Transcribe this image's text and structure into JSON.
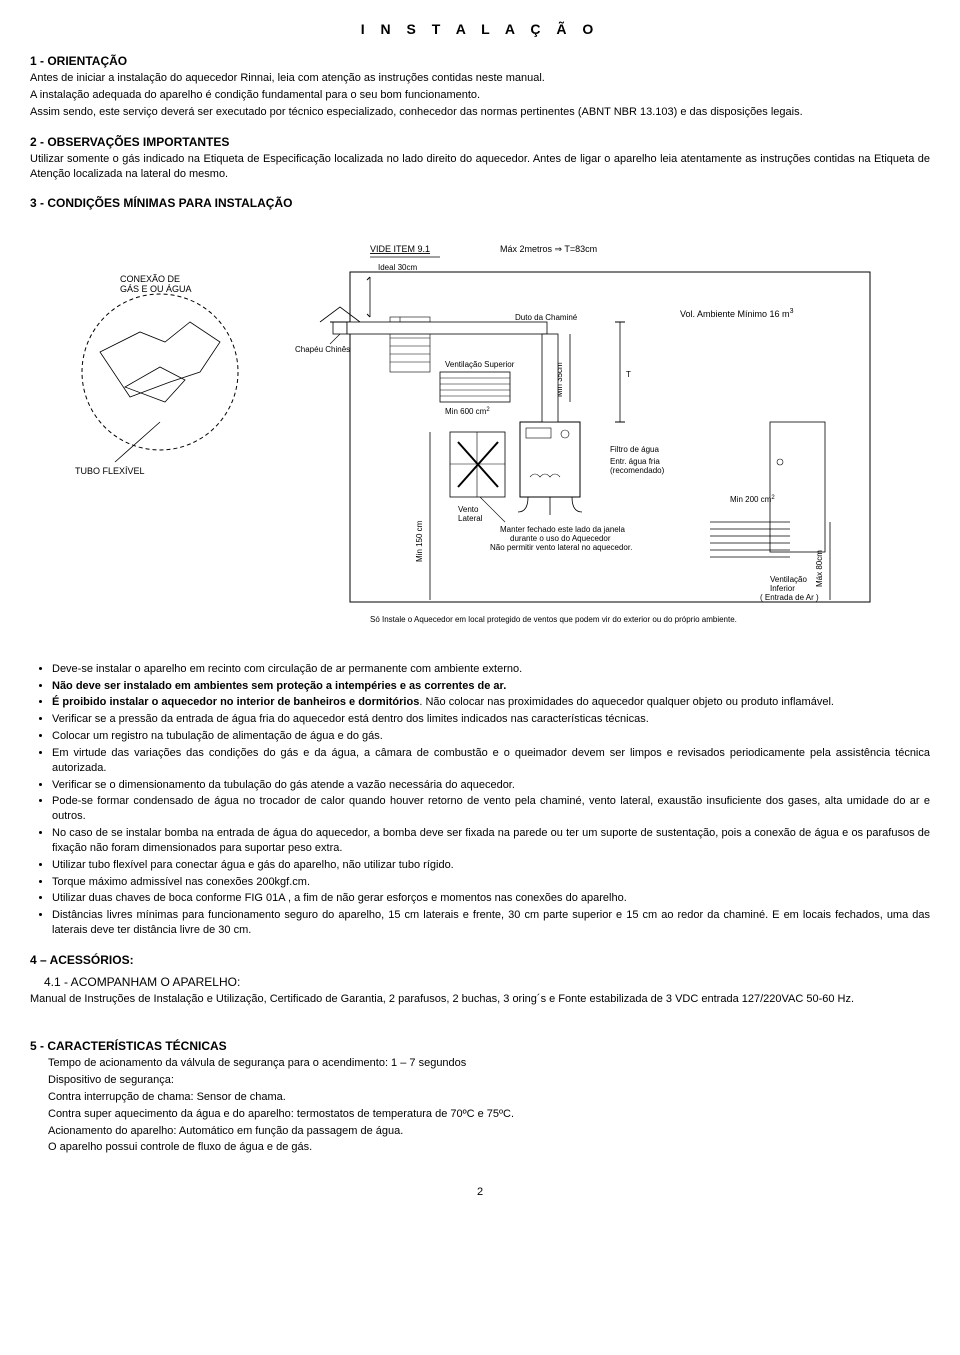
{
  "page_title": "I N S T A L A Ç Ã O",
  "sec1": {
    "heading": "1 - ORIENTAÇÃO",
    "p1": "Antes de iniciar a instalação do aquecedor Rinnai, leia com atenção as instruções contidas neste manual.",
    "p2": "A instalação adequada do aparelho é condição fundamental para o seu bom funcionamento.",
    "p3": "Assim sendo, este serviço deverá ser executado por técnico especializado, conhecedor das normas pertinentes (ABNT NBR 13.103) e das disposições legais."
  },
  "sec2": {
    "heading": "2 - OBSERVAÇÕES IMPORTANTES",
    "p1": "Utilizar somente o gás indicado na Etiqueta de Especificação localizada no lado direito do aquecedor. Antes de ligar o aparelho leia atentamente as instruções contidas na Etiqueta de Atenção localizada na lateral do mesmo."
  },
  "sec3": {
    "heading": "3 - CONDIÇÕES MÍNIMAS PARA INSTALAÇÃO"
  },
  "diagram": {
    "labels": {
      "vide_item": "VIDE ITEM 9.1",
      "max2m": "Máx 2metros ⇒ T=83cm",
      "ideal30": "Ideal 30cm",
      "conexao": "CONEXÃO DE GÁS E OU ÁGUA",
      "chapeu": "Chapéu Chinês",
      "duto": "Duto da Chaminé",
      "vol_amb": "Vol. Ambiente  Mínimo 16 m",
      "vol_amb_sup": "3",
      "vent_sup": "Ventilação Superior",
      "vent_sup_min": "Min 600 cm",
      "vent_sup_sup": "2",
      "min35": "Min 35cm",
      "t_marker": "T",
      "tubo_flex": "TUBO FLEXÍVEL",
      "vento_lat": "Vento Lateral",
      "filtro": "Filtro de água",
      "entr_agua": "Entr. água fria (recomendado)",
      "min200": "Min 200 cm",
      "min200_sup": "2",
      "manter": "Manter fechado este lado da janela durante o uso do Aquecedor Não permitir vento lateral no aquecedor.",
      "min150": "Min 150 cm",
      "max80": "Máx 80cm",
      "vent_inf": "Ventilação Inferior ( Entrada de Ar )",
      "so_instale": "Só Instale o Aquecedor em local protegido de ventos que podem vir do exterior ou do próprio ambiente."
    },
    "colors": {
      "stroke": "#000000",
      "bg": "#ffffff"
    }
  },
  "bullets": [
    "Deve-se instalar o aparelho em recinto com circulação de ar permanente com ambiente externo.",
    "<b>Não deve ser instalado em ambientes sem proteção a intempéries e as correntes de ar.</b>",
    "<b>É proibido instalar o aquecedor no interior de banheiros e dormitórios</b>. Não colocar nas proximidades do aquecedor qualquer objeto ou produto inflamável.",
    "Verificar se a pressão da entrada de água fria do aquecedor está dentro dos limites indicados nas características técnicas.",
    "Colocar um registro na tubulação de alimentação de água e do gás.",
    "Em virtude das variações das condições do gás e da água, a câmara de combustão e o queimador devem ser limpos e revisados periodicamente pela assistência técnica autorizada.",
    "Verificar se o dimensionamento da tubulação do gás atende a vazão necessária do aquecedor.",
    "Pode-se formar condensado de água no trocador de calor quando houver retorno de vento pela chaminé, vento lateral, exaustão insuficiente dos gases, alta umidade do ar e outros.",
    "No caso de se instalar bomba na entrada de água do aquecedor, a bomba deve ser fixada na parede ou ter um suporte de sustentação, pois a conexão de água e os parafusos de fixação não foram dimensionados para suportar peso extra.",
    "Utilizar tubo flexível para conectar água e gás do aparelho, não utilizar tubo rígido.",
    "Torque máximo admissível nas conexões 200kgf.cm.",
    "Utilizar duas chaves de boca conforme FIG 01A , a fim de não gerar esforços e momentos nas conexões do aparelho.",
    "Distâncias livres mínimas para funcionamento seguro do aparelho, 15 cm laterais e frente, 30 cm parte superior e 15 cm ao redor da chaminé. E em locais fechados, uma das laterais deve ter distância livre de 30 cm."
  ],
  "sec4": {
    "heading": "4 – ACESSÓRIOS:",
    "sub": "4.1 - ACOMPANHAM O APARELHO:",
    "p1": "Manual de Instruções de Instalação e Utilização, Certificado de Garantia,  2 parafusos, 2 buchas, 3 oring´s e Fonte estabilizada de 3 VDC entrada 127/220VAC 50-60 Hz."
  },
  "sec5": {
    "heading": "5 - CARACTERÍSTICAS TÉCNICAS",
    "lines": [
      "Tempo de acionamento da válvula de segurança para o acendimento: 1 – 7 segundos",
      "Dispositivo de segurança:",
      "Contra interrupção de chama: Sensor de chama.",
      "Contra super aquecimento da água e do aparelho: termostatos de temperatura de 70ºC e 75ºC.",
      "Acionamento do aparelho: Automático em função da passagem de água.",
      "O aparelho possui controle de fluxo de água e de gás."
    ]
  },
  "page_number": "2"
}
